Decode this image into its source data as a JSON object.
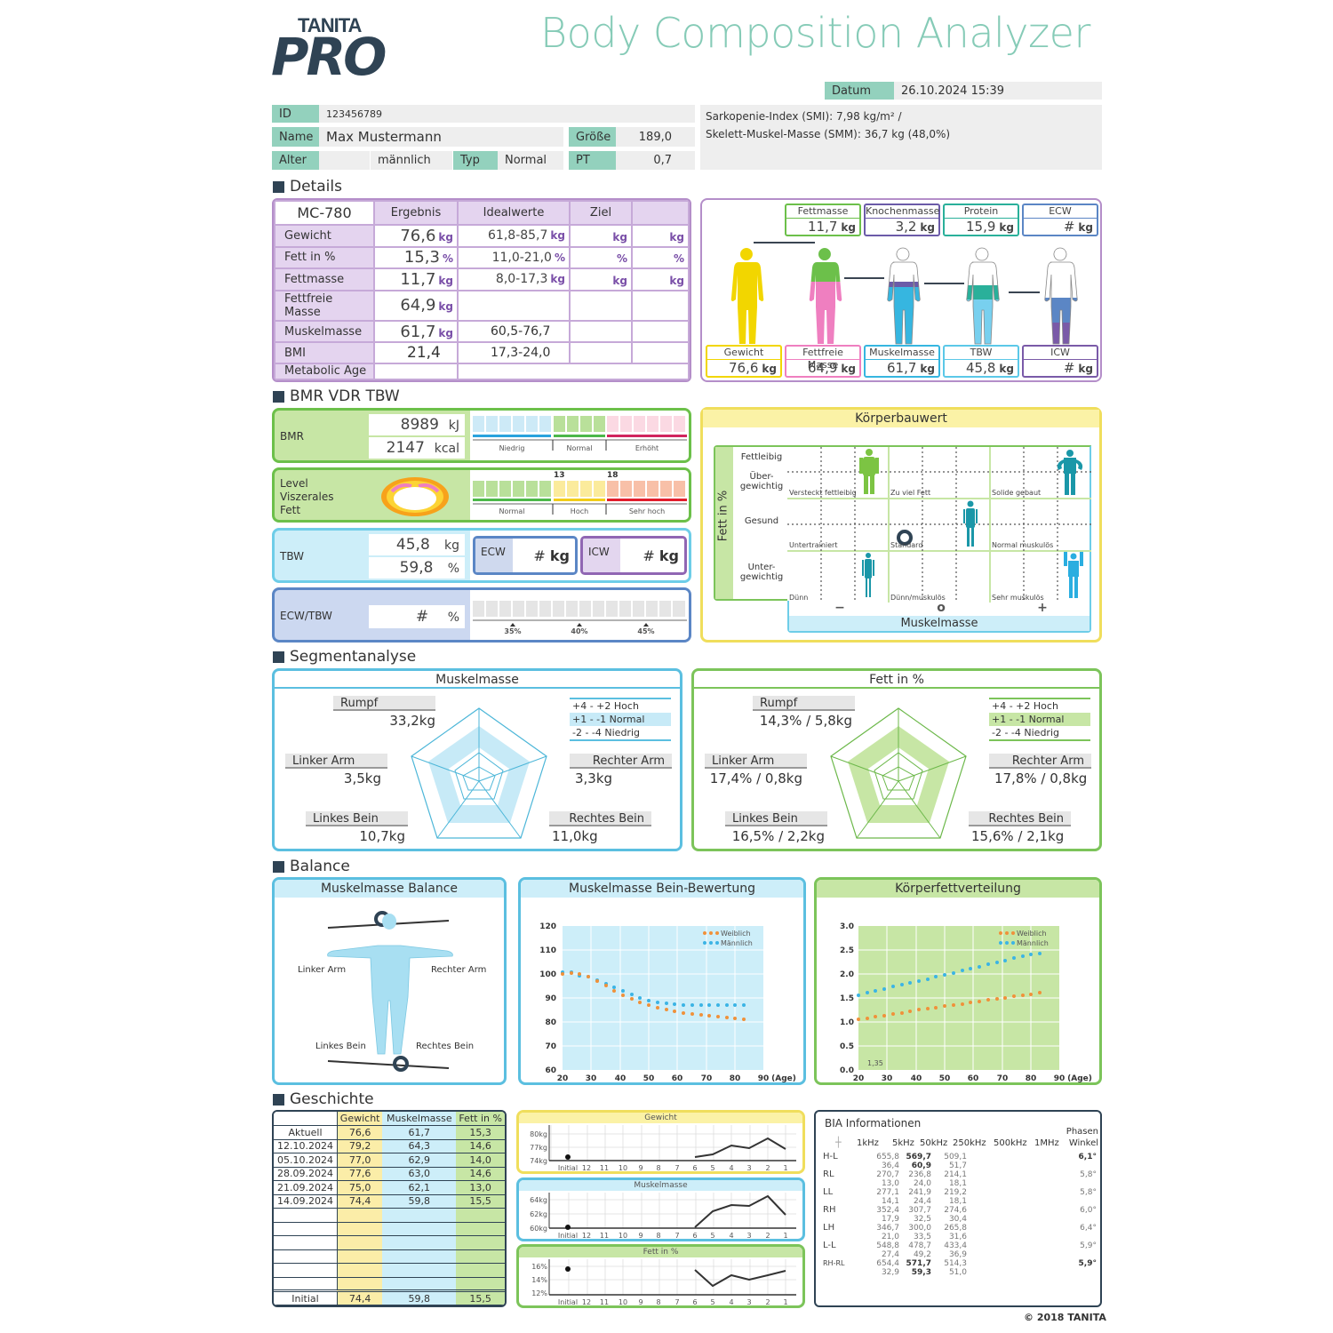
{
  "header": {
    "logo_top": "TANITA",
    "logo_main": "PRO",
    "title": "Body Composition Analyzer",
    "date_label": "Datum",
    "date_value": "26.10.2024 15:39"
  },
  "patient": {
    "id_label": "ID",
    "id_value": "123456789",
    "name_label": "Name",
    "name_value": "Max Mustermann",
    "height_label": "Größe",
    "height_value": "189,0",
    "age_label": "Alter",
    "age_value": "",
    "gender_value": "männlich",
    "type_label": "Typ",
    "type_value": "Normal",
    "pt_label": "PT",
    "pt_value": "0,7",
    "smi_line": "Sarkopenie-Index (SMI): 7,98 kg/m² /",
    "smm_line": "Skelett-Muskel-Masse (SMM): 36,7 kg (48,0%)"
  },
  "details": {
    "section_title": "Details",
    "model": "MC-780",
    "headers": [
      "Ergebnis",
      "Idealwerte",
      "Ziel",
      ""
    ],
    "rows": [
      {
        "label": "Gewicht",
        "result": "76,6",
        "result_unit": "kg",
        "ideal": "61,8-85,7",
        "ideal_unit": "kg",
        "goal_unit": "kg",
        "goal2_unit": "kg"
      },
      {
        "label": "Fett in %",
        "result": "15,3",
        "result_unit": "%",
        "ideal": "11,0-21,0",
        "ideal_unit": "%",
        "goal_unit": "%",
        "goal2_unit": "%"
      },
      {
        "label": "Fettmasse",
        "result": "11,7",
        "result_unit": "kg",
        "ideal": "8,0-17,3",
        "ideal_unit": "kg",
        "goal_unit": "kg",
        "goal2_unit": "kg"
      },
      {
        "label": "Fettfreie Masse",
        "result": "64,9",
        "result_unit": "kg",
        "ideal": "",
        "ideal_unit": "",
        "goal_unit": "",
        "goal2_unit": ""
      },
      {
        "label": "Muskelmasse",
        "result": "61,7",
        "result_unit": "kg",
        "ideal": "60,5-76,7",
        "ideal_unit": "",
        "goal_unit": "",
        "goal2_unit": ""
      },
      {
        "label": "BMI",
        "result": "21,4",
        "result_unit": "",
        "ideal": "17,3-24,0",
        "ideal_unit": "",
        "goal_unit": "",
        "goal2_unit": ""
      },
      {
        "label": "Metabolic Age",
        "result": "",
        "result_unit": "",
        "ideal": "",
        "ideal_unit": "",
        "goal_unit": "",
        "goal2_unit": ""
      }
    ]
  },
  "figures": {
    "top": [
      {
        "label": "Fettmasse",
        "value": "11,7",
        "unit": "kg",
        "color": "#6cc04a"
      },
      {
        "label": "Knochenmasse",
        "value": "3,2",
        "unit": "kg",
        "color": "#6b5ba8"
      },
      {
        "label": "Protein",
        "value": "15,9",
        "unit": "kg",
        "color": "#2ab09a"
      },
      {
        "label": "ECW",
        "value": "#",
        "unit": "kg",
        "color": "#5b86c5"
      }
    ],
    "bottom": [
      {
        "label": "Gewicht",
        "value": "76,6",
        "unit": "kg",
        "color": "#f2d600"
      },
      {
        "label": "Fettfreie Masse",
        "value": "64,9",
        "unit": "kg",
        "color": "#ef7fc0"
      },
      {
        "label": "Muskelmasse",
        "value": "61,7",
        "unit": "kg",
        "color": "#36b6e0"
      },
      {
        "label": "TBW",
        "value": "45,8",
        "unit": "kg",
        "color": "#5bc8e8"
      },
      {
        "label": "ICW",
        "value": "#",
        "unit": "kg",
        "color": "#7a5aa8"
      }
    ]
  },
  "bmr_section": {
    "section_title": "BMR VDR TBW",
    "bmr_label": "BMR",
    "bmr_kj": "8989",
    "bmr_kj_unit": "kJ",
    "bmr_kcal": "2147",
    "bmr_kcal_unit": "kcal",
    "bmr_scale": [
      "Niedrig",
      "Normal",
      "Erhöht"
    ],
    "vf_label_1": "Level",
    "vf_label_2": "Viszerales",
    "vf_label_3": "Fett",
    "vf_marks": [
      "13",
      "18"
    ],
    "vf_scale": [
      "Normal",
      "Hoch",
      "Sehr hoch"
    ],
    "tbw_label": "TBW",
    "tbw_kg": "45,8",
    "tbw_kg_unit": "kg",
    "tbw_pct": "59,8",
    "tbw_pct_unit": "%",
    "ecw_label": "ECW",
    "ecw_value": "#",
    "ecw_unit": "kg",
    "icw_label": "ICW",
    "icw_value": "#",
    "icw_unit": "kg",
    "ecwtbw_label": "ECW/TBW",
    "ecwtbw_value": "#",
    "ecwtbw_unit": "%",
    "ecwtbw_marks": [
      "35%",
      "40%",
      "45%"
    ]
  },
  "koerperbauwert": {
    "title": "Körperbauwert",
    "y_axis": "Fett in %",
    "rows": [
      "Fettleibig",
      "Über-\ngewichtig",
      "Gesund",
      "Unter-\ngewichtig"
    ],
    "cells": [
      "Versteckt fettleibig",
      "Zu viel Fett",
      "Solide gebaut",
      "Untertrainiert",
      "Standard",
      "Normal muskulös",
      "Dünn",
      "Dünn/muskulös",
      "Sehr muskulös"
    ],
    "x_marks": [
      "−",
      "o",
      "+"
    ],
    "x_axis": "Muskelmasse"
  },
  "segment": {
    "section_title": "Segmentanalyse",
    "muscle": {
      "title": "Muskelmasse",
      "rumpf": "Rumpf",
      "rumpf_val": "33,2kg",
      "larm": "Linker Arm",
      "larm_val": "3,5kg",
      "rarm": "Rechter Arm",
      "rarm_val": "3,3kg",
      "lbein": "Linkes Bein",
      "lbein_val": "10,7kg",
      "rbein": "Rechtes Bein",
      "rbein_val": "11,0kg"
    },
    "fat": {
      "title": "Fett in %",
      "rumpf": "Rumpf",
      "rumpf_val": "14,3% / 5,8kg",
      "larm": "Linker Arm",
      "larm_val": "17,4% / 0,8kg",
      "rarm": "Rechter Arm",
      "rarm_val": "17,8% / 0,8kg",
      "lbein": "Linkes Bein",
      "lbein_val": "16,5% / 2,2kg",
      "rbein": "Rechtes Bein",
      "rbein_val": "15,6% / 2,1kg"
    },
    "legend": [
      "+4 - +2 Hoch",
      "+1 -  -1 Normal",
      "-2 -  -4 Niedrig"
    ]
  },
  "balance": {
    "section_title": "Balance",
    "mb_title": "Muskelmasse Balance",
    "mb_labels": [
      "Linker Arm",
      "Rechter Arm",
      "Linkes Bein",
      "Rechtes Bein"
    ],
    "leg_title": "Muskelmasse Bein-Bewertung",
    "fat_title": "Körperfettverteilung",
    "legend_f": "Weiblich",
    "legend_m": "Männlich",
    "age_label": "(Age)",
    "fat_marker": "1,35"
  },
  "chart_data": [
    {
      "type": "scatter",
      "title": "Muskelmasse Bein-Bewertung",
      "xlabel": "(Age)",
      "x_ticks": [
        "20",
        "30",
        "40",
        "50",
        "60",
        "70",
        "80",
        "90"
      ],
      "y_ticks": [
        "60",
        "70",
        "80",
        "90",
        "100",
        "110",
        "120"
      ],
      "ylim": [
        60,
        120
      ],
      "xlim": [
        20,
        90
      ],
      "x": [
        20,
        23,
        26,
        29,
        32,
        35,
        38,
        41,
        44,
        47,
        50,
        53,
        56,
        59,
        62,
        65,
        68,
        71,
        74,
        77,
        80,
        83
      ],
      "series": [
        {
          "name": "Weiblich",
          "color": "#f0913a",
          "values": [
            100,
            100.5,
            100,
            99,
            97,
            95,
            93,
            91,
            89.5,
            88,
            87,
            86,
            85,
            84.3,
            83.8,
            83.3,
            83,
            82.7,
            82.4,
            82.1,
            81.8,
            81.5
          ]
        },
        {
          "name": "Männlich",
          "color": "#3bb4e5",
          "values": [
            101,
            100.5,
            99.5,
            99,
            97.5,
            96,
            94.5,
            93,
            91.5,
            90,
            89,
            88.3,
            87.8,
            87.4,
            87.2,
            87,
            87,
            87,
            87,
            87,
            87,
            87
          ]
        }
      ]
    },
    {
      "type": "scatter",
      "title": "Körperfettverteilung",
      "xlabel": "(Age)",
      "x_ticks": [
        "20",
        "30",
        "40",
        "50",
        "60",
        "70",
        "80",
        "90"
      ],
      "y_ticks": [
        "0.0",
        "0.5",
        "1.0",
        "1.5",
        "2.0",
        "2.5",
        "3.0"
      ],
      "ylim": [
        0,
        3
      ],
      "xlim": [
        20,
        90
      ],
      "x": [
        20,
        23,
        26,
        29,
        32,
        35,
        38,
        41,
        44,
        47,
        50,
        53,
        56,
        59,
        62,
        65,
        68,
        71,
        74,
        77,
        80,
        83
      ],
      "series": [
        {
          "name": "Weiblich",
          "color": "#f0913a",
          "values": [
            1.05,
            1.08,
            1.1,
            1.13,
            1.16,
            1.19,
            1.22,
            1.25,
            1.27,
            1.3,
            1.32,
            1.35,
            1.37,
            1.4,
            1.42,
            1.45,
            1.47,
            1.5,
            1.52,
            1.55,
            1.57,
            1.6
          ]
        },
        {
          "name": "Männlich",
          "color": "#3bb4e5",
          "values": [
            1.55,
            1.6,
            1.64,
            1.69,
            1.73,
            1.77,
            1.81,
            1.85,
            1.89,
            1.94,
            1.98,
            2.02,
            2.07,
            2.11,
            2.15,
            2.2,
            2.24,
            2.28,
            2.33,
            2.37,
            2.4,
            2.43
          ]
        }
      ],
      "annotation": "1,35"
    },
    {
      "type": "line",
      "title": "Gewicht",
      "categories": [
        "Initial",
        "12",
        "11",
        "10",
        "9",
        "8",
        "7",
        "6",
        "5",
        "4",
        "3",
        "2",
        "1"
      ],
      "y_ticks": [
        "74kg",
        "77kg",
        "80kg"
      ],
      "initial": 74.4,
      "values": [
        null,
        null,
        null,
        null,
        null,
        null,
        null,
        74.4,
        75.0,
        77.6,
        77.0,
        79.2,
        76.6
      ]
    },
    {
      "type": "line",
      "title": "Muskelmasse",
      "categories": [
        "Initial",
        "12",
        "11",
        "10",
        "9",
        "8",
        "7",
        "6",
        "5",
        "4",
        "3",
        "2",
        "1"
      ],
      "y_ticks": [
        "60kg",
        "62kg",
        "64kg"
      ],
      "initial": 59.8,
      "values": [
        null,
        null,
        null,
        null,
        null,
        null,
        null,
        59.8,
        62.1,
        63.0,
        62.9,
        64.3,
        61.7
      ]
    },
    {
      "type": "line",
      "title": "Fett in %",
      "categories": [
        "Initial",
        "12",
        "11",
        "10",
        "9",
        "8",
        "7",
        "6",
        "5",
        "4",
        "3",
        "2",
        "1"
      ],
      "y_ticks": [
        "12%",
        "14%",
        "16%"
      ],
      "initial": 15.5,
      "values": [
        null,
        null,
        null,
        null,
        null,
        null,
        null,
        15.5,
        13.0,
        14.6,
        14.0,
        14.6,
        15.3
      ]
    }
  ],
  "history": {
    "section_title": "Geschichte",
    "headers": [
      "",
      "Gewicht",
      "Muskelmasse",
      "Fett in %"
    ],
    "rows": [
      [
        "Aktuell",
        "76,6",
        "61,7",
        "15,3"
      ],
      [
        "12.10.2024",
        "79,2",
        "64,3",
        "14,6"
      ],
      [
        "05.10.2024",
        "77,0",
        "62,9",
        "14,0"
      ],
      [
        "28.09.2024",
        "77,6",
        "63,0",
        "14,6"
      ],
      [
        "21.09.2024",
        "75,0",
        "62,1",
        "13,0"
      ],
      [
        "14.09.2024",
        "74,4",
        "59,8",
        "15,5"
      ],
      [
        "",
        "",
        "",
        ""
      ],
      [
        "",
        "",
        "",
        ""
      ],
      [
        "",
        "",
        "",
        ""
      ],
      [
        "",
        "",
        "",
        ""
      ],
      [
        "",
        "",
        "",
        ""
      ],
      [
        "",
        "",
        "",
        ""
      ]
    ],
    "initial": [
      "Initial",
      "74,4",
      "59,8",
      "15,5"
    ],
    "mini_titles": [
      "Gewicht",
      "Muskelmasse",
      "Fett in %"
    ],
    "mini_x": [
      "Initial",
      "12",
      "11",
      "10",
      "9",
      "8",
      "7",
      "6",
      "5",
      "4",
      "3",
      "2",
      "1"
    ]
  },
  "bia": {
    "title": "BIA Informationen",
    "headers": [
      "1kHz",
      "5kHz",
      "50kHz",
      "250kHz",
      "500kHz",
      "1MHz",
      "Phasen\nWinkel"
    ],
    "rows": [
      {
        "label": "H-L",
        "r": [
          "",
          "655,8",
          "569,7",
          "509,1",
          "",
          ""
        ],
        "x": [
          "",
          "36,4",
          "60,9",
          "51,7",
          "",
          ""
        ],
        "phase": "6,1°"
      },
      {
        "label": "RL",
        "r": [
          "",
          "270,7",
          "236,8",
          "214,1",
          "",
          ""
        ],
        "x": [
          "",
          "13,0",
          "24,0",
          "18,1",
          "",
          ""
        ],
        "phase": "5,8°"
      },
      {
        "label": "LL",
        "r": [
          "",
          "277,1",
          "241,9",
          "219,2",
          "",
          ""
        ],
        "x": [
          "",
          "14,1",
          "24,4",
          "18,1",
          "",
          ""
        ],
        "phase": "5,8°"
      },
      {
        "label": "RH",
        "r": [
          "",
          "352,4",
          "307,7",
          "274,6",
          "",
          ""
        ],
        "x": [
          "",
          "17,9",
          "32,5",
          "30,4",
          "",
          ""
        ],
        "phase": "6,0°"
      },
      {
        "label": "LH",
        "r": [
          "",
          "346,7",
          "300,0",
          "265,8",
          "",
          ""
        ],
        "x": [
          "",
          "21,0",
          "33,5",
          "31,6",
          "",
          ""
        ],
        "phase": "6,4°"
      },
      {
        "label": "L-L",
        "r": [
          "",
          "548,8",
          "478,7",
          "433,4",
          "",
          ""
        ],
        "x": [
          "",
          "27,4",
          "49,2",
          "36,9",
          "",
          ""
        ],
        "phase": "5,9°"
      },
      {
        "label": "RH-RL",
        "r": [
          "",
          "654,4",
          "571,7",
          "514,3",
          "",
          ""
        ],
        "x": [
          "",
          "32,9",
          "59,3",
          "51,0",
          "",
          ""
        ],
        "phase": "5,9°"
      }
    ]
  },
  "footer": {
    "copyright": "© 2018 TANITA"
  }
}
